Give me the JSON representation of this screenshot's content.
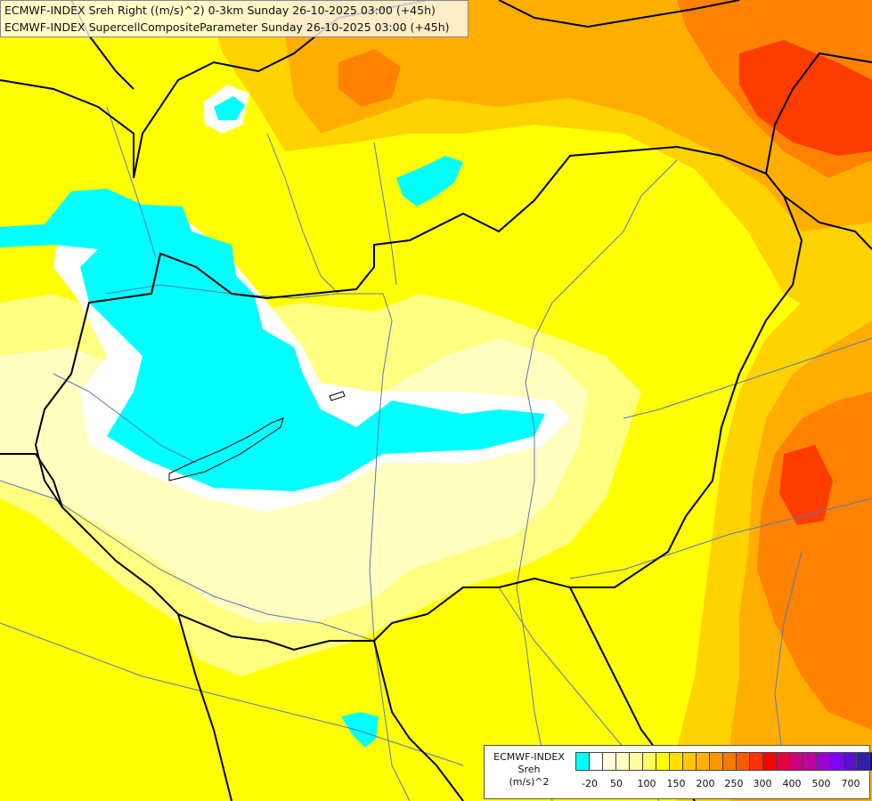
{
  "title": {
    "line1": "ECMWF-INDEX Sreh Right ((m/s)^2) 0-3km Sunday 26-10-2025 03:00 (+45h)",
    "line2": "ECMWF-INDEX SupercellCompositeParameter Sunday 26-10-2025 03:00 (+45h)"
  },
  "legend": {
    "source": "ECMWF-INDEX",
    "variable": "Sreh",
    "unit": "(m/s)^2",
    "colors": [
      "#00ffff",
      "#ffffff",
      "#ffffe0",
      "#ffffc0",
      "#ffffa0",
      "#ffff60",
      "#ffff00",
      "#ffe000",
      "#ffc800",
      "#ffb000",
      "#ff9600",
      "#ff7800",
      "#ff5a00",
      "#ff3200",
      "#ff0000",
      "#e6003c",
      "#cc0078",
      "#c000a0",
      "#a000d0",
      "#8000ff",
      "#5a10d0",
      "#3020a8",
      "#101070"
    ],
    "tick_labels": [
      "-20",
      "50",
      "100",
      "150",
      "200",
      "250",
      "300",
      "400",
      "500",
      "700"
    ]
  },
  "map_colors": {
    "water": "#00ffff",
    "zero": "#ffffff",
    "pale": "#ffffc0",
    "light": "#ffff80",
    "yellow": "#ffff00",
    "gold": "#ffd200",
    "orange": "#ffae00",
    "deep_orange": "#ff8200",
    "red": "#ff3c00",
    "border": "#000000",
    "river": "#5a78b4"
  }
}
